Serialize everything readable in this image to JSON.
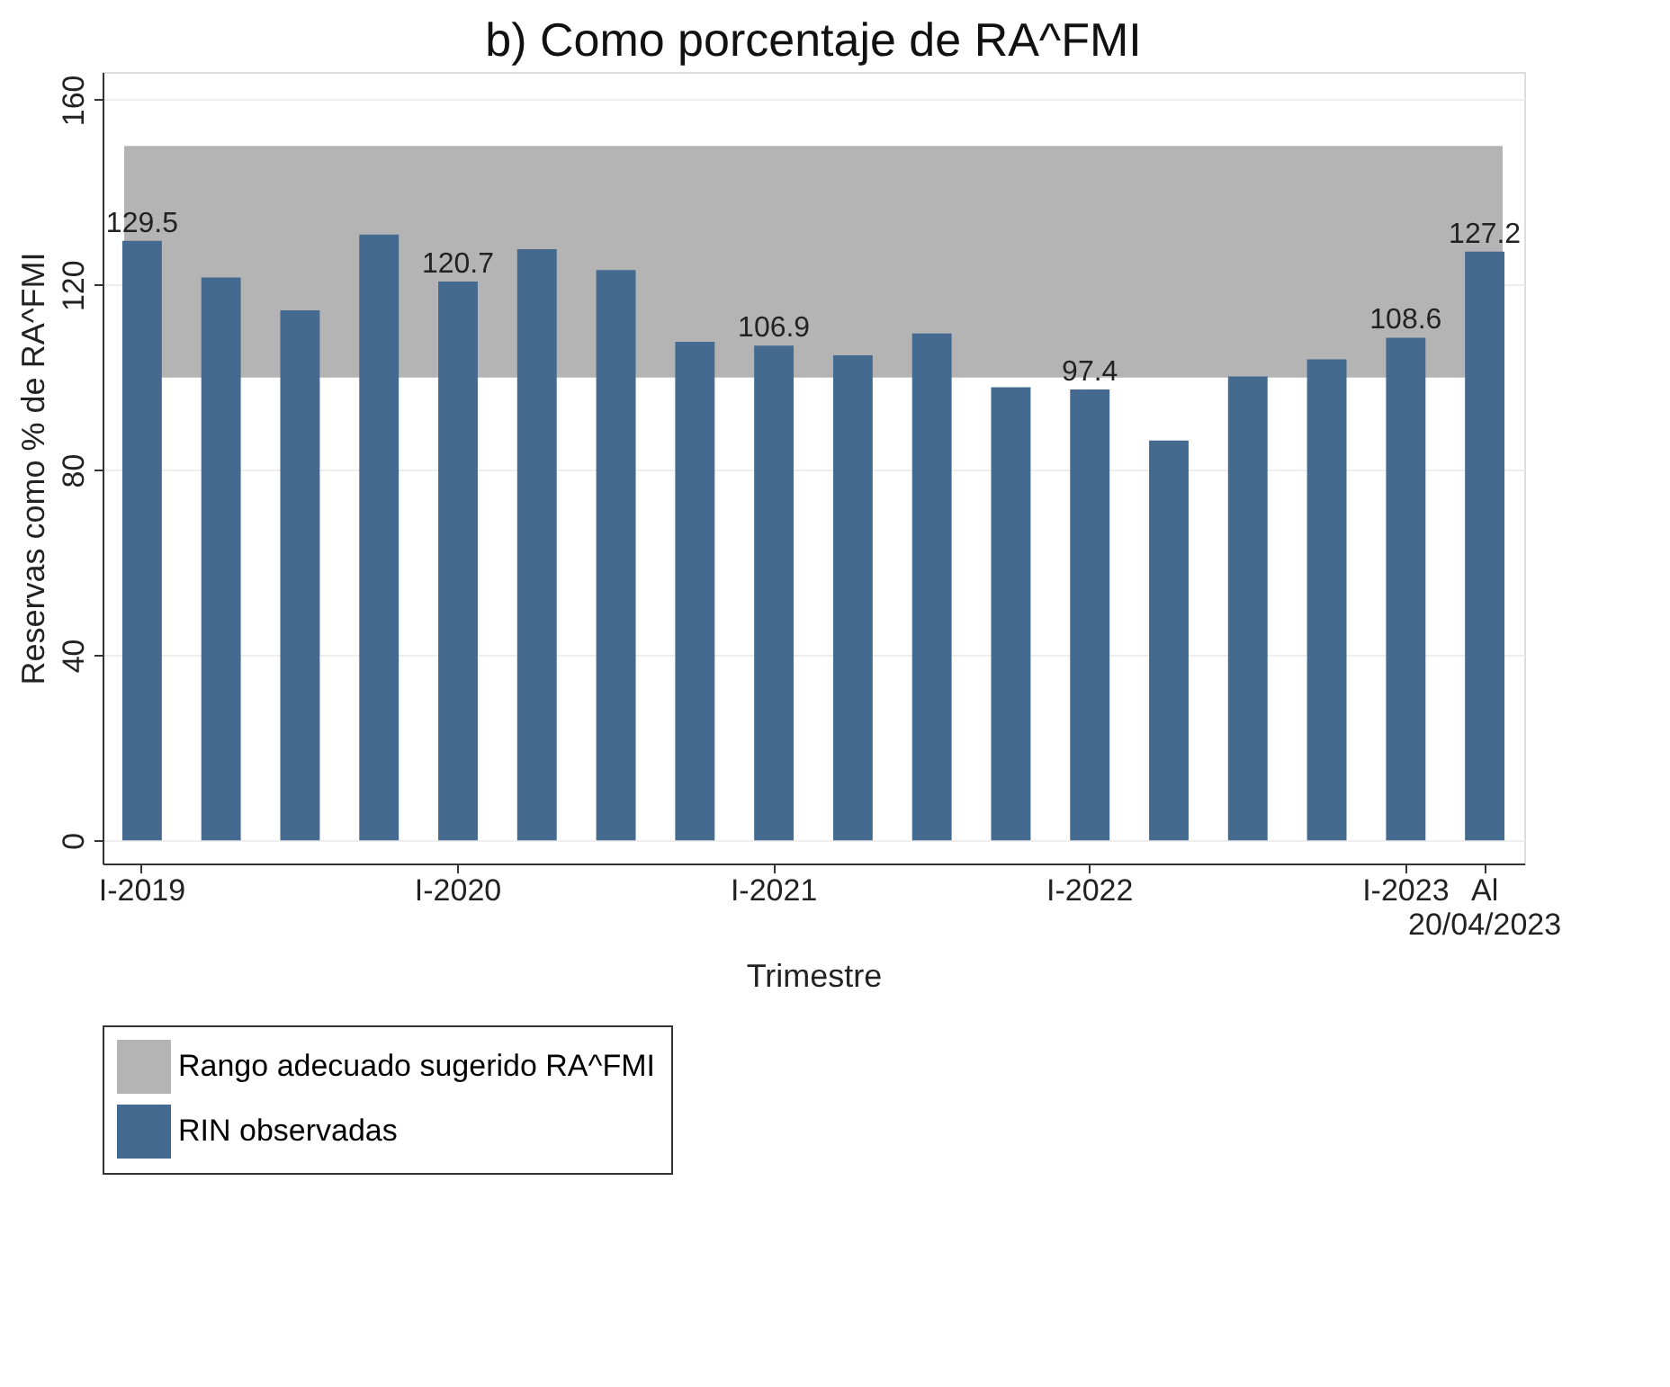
{
  "chart_data": {
    "type": "bar",
    "title": "b) Como porcentaje de RA^FMI",
    "xlabel": "Trimestre",
    "ylabel": "Reservas como % de RA^FMI",
    "categories": [
      "I-2019",
      null,
      null,
      null,
      "I-2020",
      null,
      null,
      null,
      "I-2021",
      null,
      null,
      null,
      "I-2022",
      null,
      null,
      null,
      "I-2023",
      "Al 20/04/2023"
    ],
    "series": [
      {
        "name": "RIN observadas",
        "color": "#456a8f",
        "values": [
          129.5,
          121.6,
          114.5,
          130.9,
          120.7,
          127.7,
          123.2,
          107.7,
          106.9,
          104.8,
          109.5,
          97.9,
          97.4,
          86.4,
          100.2,
          103.9,
          108.6,
          127.2
        ],
        "value_labels": [
          "129.5",
          null,
          null,
          null,
          "120.7",
          null,
          null,
          null,
          "106.9",
          null,
          null,
          null,
          "97.4",
          null,
          null,
          null,
          "108.6",
          "127.2"
        ]
      }
    ],
    "bands": [
      {
        "axis": "y",
        "from": 100,
        "to": 150,
        "label": "Rango adecuado sugerido RA^FMI",
        "color": "#b4b4b4"
      }
    ],
    "ylim": [
      -5,
      166
    ],
    "yticks": [
      0,
      40,
      80,
      120,
      160
    ],
    "grid": "y",
    "legend": "bottom"
  }
}
